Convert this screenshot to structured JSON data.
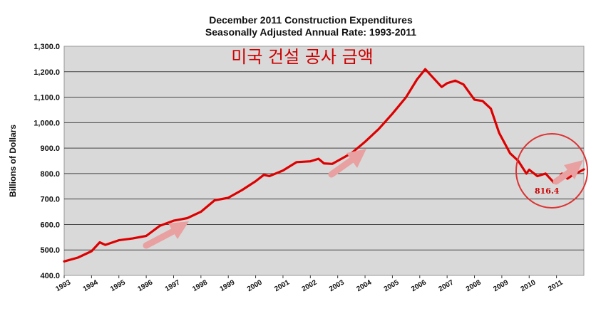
{
  "chart_data": {
    "type": "line",
    "title": "December 2011 Construction Expenditures",
    "subtitle": "Seasonally Adjusted Annual Rate: 1993-2011",
    "overlay_text": "미국 건설 공사 금액",
    "callout_label": "816.4",
    "ylabel": "Billions of Dollars",
    "xlabel": "",
    "ylim": [
      400,
      1300
    ],
    "xlim": [
      1993,
      2012
    ],
    "yticks": [
      400,
      500,
      600,
      700,
      800,
      900,
      1000,
      1100,
      1200,
      1300
    ],
    "ytick_labels": [
      "400.0",
      "500.0",
      "600.0",
      "700.0",
      "800.0",
      "900.0",
      "1,000.0",
      "1,100.0",
      "1,200.0",
      "1,300.0"
    ],
    "xtick_labels": [
      "1993",
      "1994",
      "1995",
      "1996",
      "1997",
      "1998",
      "1999",
      "2000",
      "2001",
      "2002",
      "2003",
      "2004",
      "2005",
      "2006",
      "2007",
      "2008",
      "2009",
      "2010",
      "2011"
    ],
    "grid": "horizontal",
    "colors": {
      "line": "#dd0000",
      "plot_bg": "#d9d9d9",
      "arrow": "#e8a0a0",
      "circle": "#dd3333"
    },
    "series": [
      {
        "x": [
          1993.0,
          1993.5,
          1994.0,
          1994.3,
          1994.5,
          1995.0,
          1995.5,
          1996.0,
          1996.5,
          1997.0,
          1997.5,
          1998.0,
          1998.5,
          1999.0,
          1999.5,
          2000.0,
          2000.3,
          2000.5,
          2001.0,
          2001.5,
          2002.0,
          2002.3,
          2002.5,
          2002.8,
          2003.0,
          2003.5,
          2004.0,
          2004.5,
          2005.0,
          2005.5,
          2005.9,
          2006.2,
          2006.5,
          2006.8,
          2007.0,
          2007.3,
          2007.6,
          2007.9,
          2008.0,
          2008.3,
          2008.6,
          2008.9,
          2009.0,
          2009.3,
          2009.6,
          2009.9,
          2010.0,
          2010.3,
          2010.6,
          2010.9,
          2011.0,
          2011.2,
          2011.4,
          2011.6,
          2011.8,
          2012.0
        ],
        "y": [
          455,
          470,
          495,
          530,
          520,
          538,
          545,
          555,
          595,
          615,
          625,
          650,
          695,
          705,
          735,
          770,
          795,
          790,
          812,
          845,
          848,
          858,
          840,
          838,
          850,
          880,
          925,
          975,
          1035,
          1100,
          1170,
          1210,
          1175,
          1140,
          1155,
          1165,
          1150,
          1105,
          1090,
          1085,
          1055,
          960,
          940,
          880,
          850,
          800,
          815,
          790,
          800,
          765,
          770,
          800,
          780,
          795,
          805,
          816.4
        ]
      }
    ]
  }
}
